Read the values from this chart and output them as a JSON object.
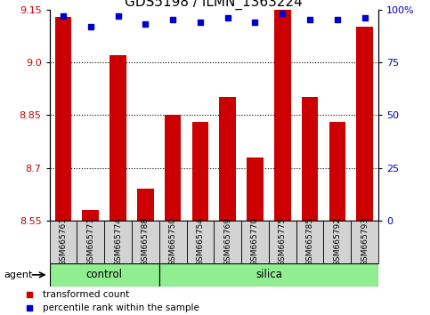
{
  "title": "GDS5198 / ILMN_1363224",
  "samples": [
    "GSM665761",
    "GSM665771",
    "GSM665774",
    "GSM665788",
    "GSM665750",
    "GSM665754",
    "GSM665769",
    "GSM665770",
    "GSM665775",
    "GSM665785",
    "GSM665792",
    "GSM665793"
  ],
  "red_values": [
    9.13,
    8.58,
    9.02,
    8.64,
    8.85,
    8.83,
    8.9,
    8.73,
    9.15,
    8.9,
    8.83,
    9.1
  ],
  "blue_values_pct": [
    97,
    92,
    97,
    93,
    95,
    94,
    96,
    94,
    98,
    95,
    95,
    96
  ],
  "ylim_left": [
    8.55,
    9.15
  ],
  "yticks_left": [
    8.55,
    8.7,
    8.85,
    9.0,
    9.15
  ],
  "yticks_right": [
    0,
    25,
    50,
    75,
    100
  ],
  "ylim_right": [
    0,
    100
  ],
  "control_samples": 4,
  "silica_samples": 8,
  "control_label": "control",
  "silica_label": "silica",
  "agent_label": "agent",
  "legend_red": "transformed count",
  "legend_blue": "percentile rank within the sample",
  "bar_color": "#cc0000",
  "dot_color": "#0000cc",
  "green_bg": "#90ee90",
  "sample_bg": "#d3d3d3",
  "left_axis_color": "#cc0000",
  "right_axis_color": "#0000cc",
  "title_fontsize": 11,
  "tick_fontsize": 8,
  "bar_width": 0.6
}
